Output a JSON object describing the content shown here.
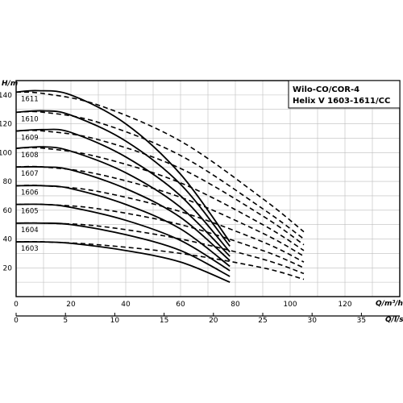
{
  "title": {
    "line1": "Wilo-CO/COR-4",
    "line2": "Helix V 1603-1611/CC"
  },
  "chart_data": {
    "type": "line",
    "ylabel": "H/m",
    "xlabel": "Q/m³/h",
    "x2label": "Q/l/s",
    "xlim": [
      0,
      140
    ],
    "ylim": [
      0,
      150
    ],
    "x_ticks": [
      "0",
      "20",
      "40",
      "60",
      "80",
      "100",
      "120"
    ],
    "x2_ticks": [
      "0",
      "5",
      "10",
      "15",
      "20",
      "25",
      "30",
      "35"
    ],
    "y_ticks": [
      "20",
      "40",
      "60",
      "80",
      "100",
      "120",
      "140"
    ],
    "grid": true,
    "series": [
      {
        "name": "1611",
        "solid": {
          "x": [
            0,
            8,
            20,
            40,
            60,
            78
          ],
          "y": [
            142,
            143,
            140,
            120,
            85,
            38
          ]
        },
        "dashed": {
          "x": [
            0,
            10,
            30,
            60,
            90,
            105
          ],
          "y": [
            142,
            141,
            133,
            108,
            68,
            45
          ]
        }
      },
      {
        "name": "1610",
        "solid": {
          "x": [
            0,
            10,
            20,
            40,
            60,
            78
          ],
          "y": [
            128,
            129,
            126,
            108,
            78,
            35
          ]
        },
        "dashed": {
          "x": [
            0,
            10,
            30,
            60,
            90,
            105
          ],
          "y": [
            128,
            128,
            121,
            98,
            61,
            40
          ]
        }
      },
      {
        "name": "1609",
        "solid": {
          "x": [
            0,
            10,
            20,
            40,
            60,
            78
          ],
          "y": [
            115,
            116,
            114,
            97,
            70,
            31
          ]
        },
        "dashed": {
          "x": [
            0,
            10,
            30,
            60,
            90,
            105
          ],
          "y": [
            115,
            115,
            109,
            89,
            56,
            36
          ]
        }
      },
      {
        "name": "1608",
        "solid": {
          "x": [
            0,
            10,
            20,
            40,
            60,
            78
          ],
          "y": [
            103,
            104,
            101,
            86,
            62,
            28
          ]
        },
        "dashed": {
          "x": [
            0,
            10,
            30,
            60,
            90,
            105
          ],
          "y": [
            103,
            103,
            97,
            79,
            50,
            32
          ]
        }
      },
      {
        "name": "1607",
        "solid": {
          "x": [
            0,
            10,
            20,
            40,
            60,
            78
          ],
          "y": [
            90,
            90,
            88,
            75,
            55,
            25
          ]
        },
        "dashed": {
          "x": [
            0,
            10,
            30,
            60,
            90,
            105
          ],
          "y": [
            90,
            90,
            85,
            69,
            44,
            28
          ]
        }
      },
      {
        "name": "1606",
        "solid": {
          "x": [
            0,
            10,
            20,
            40,
            60,
            78
          ],
          "y": [
            77,
            77,
            75,
            64,
            47,
            21
          ]
        },
        "dashed": {
          "x": [
            0,
            10,
            30,
            60,
            90,
            105
          ],
          "y": [
            77,
            77,
            73,
            59,
            38,
            24
          ]
        }
      },
      {
        "name": "1605",
        "solid": {
          "x": [
            0,
            10,
            20,
            40,
            60,
            78
          ],
          "y": [
            64,
            64,
            62,
            53,
            39,
            18
          ]
        },
        "dashed": {
          "x": [
            0,
            10,
            30,
            60,
            90,
            105
          ],
          "y": [
            64,
            64,
            61,
            50,
            32,
            20
          ]
        }
      },
      {
        "name": "1604",
        "solid": {
          "x": [
            0,
            10,
            20,
            40,
            60,
            78
          ],
          "y": [
            51,
            51,
            50,
            43,
            32,
            14
          ]
        },
        "dashed": {
          "x": [
            0,
            10,
            30,
            60,
            90,
            105
          ],
          "y": [
            51,
            51,
            49,
            40,
            26,
            16
          ]
        }
      },
      {
        "name": "1603",
        "solid": {
          "x": [
            0,
            10,
            20,
            40,
            60,
            78
          ],
          "y": [
            38,
            38,
            37,
            32,
            24,
            10
          ]
        },
        "dashed": {
          "x": [
            0,
            10,
            30,
            60,
            90,
            105
          ],
          "y": [
            38,
            38,
            36,
            30,
            20,
            12
          ]
        }
      }
    ]
  }
}
